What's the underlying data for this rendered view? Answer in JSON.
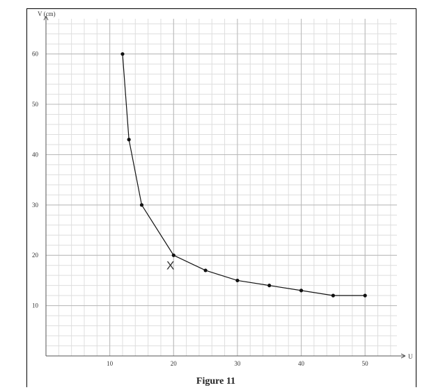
{
  "chart_data": {
    "type": "line",
    "title": "",
    "caption": "Figure 11",
    "xlabel": "U",
    "ylabel": "V (cm)",
    "xlim": [
      0,
      55
    ],
    "ylim": [
      0,
      67
    ],
    "xticks": [
      10,
      20,
      30,
      40,
      50
    ],
    "yticks": [
      10,
      20,
      30,
      40,
      50,
      60
    ],
    "grid": true,
    "minor_grid_step": 2,
    "series": [
      {
        "x": [
          12,
          13,
          15,
          20,
          25,
          30,
          35,
          40,
          45,
          50
        ],
        "y": [
          60,
          43,
          30,
          20,
          17,
          15,
          14,
          13,
          12,
          12
        ]
      }
    ],
    "annotations": [
      {
        "text": "X",
        "x": 19.5,
        "y": 18
      }
    ],
    "colors": {
      "line": "#111111",
      "grid_major": "#b8b8b8",
      "grid_minor": "#dedede",
      "axis": "#555555"
    }
  }
}
